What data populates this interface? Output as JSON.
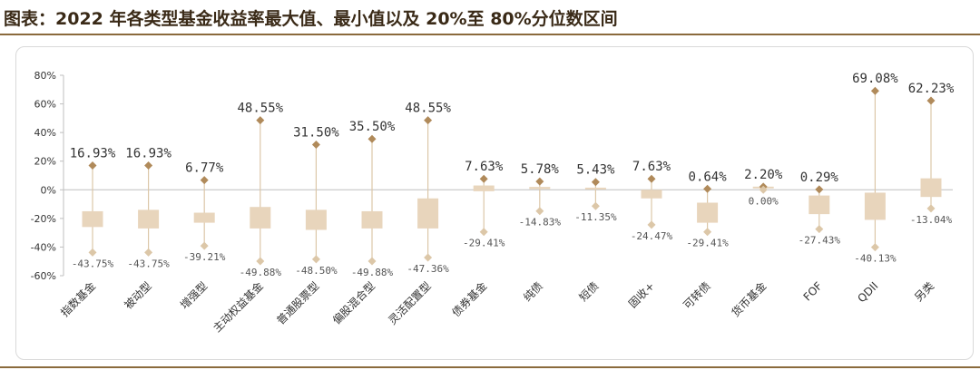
{
  "title": "图表：2022 年各类型基金收益率最大值、最小值以及 20%至 80%分位数区间",
  "chart_data": {
    "type": "box",
    "title": "图表：2022 年各类型基金收益率最大值、最小值以及 20%至 80%分位数区间",
    "ylim": [
      -60,
      80
    ],
    "y_ticks": [
      "80%",
      "60%",
      "40%",
      "20%",
      "0%",
      "-20%",
      "-40%",
      "-60%"
    ],
    "y_tick_values": [
      80,
      60,
      40,
      20,
      0,
      -20,
      -40,
      -60
    ],
    "grid": false,
    "colors": {
      "box": "#e8d5bc",
      "marker": "#b08a5a",
      "whisker": "#dcc7a8",
      "axis": "#bfbfbf"
    },
    "categories": [
      "指数基金",
      "被动型",
      "增强型",
      "主动权益基金",
      "普通股票型",
      "偏股混合型",
      "灵活配置型",
      "债券基金",
      "纯债",
      "短债",
      "固收+",
      "可转债",
      "货币基金",
      "FOF",
      "QDII",
      "另类"
    ],
    "max": [
      16.93,
      16.93,
      6.77,
      48.55,
      31.5,
      35.5,
      48.55,
      7.63,
      5.78,
      5.43,
      7.63,
      0.64,
      2.2,
      0.29,
      69.08,
      62.23
    ],
    "min": [
      -43.75,
      -43.75,
      -39.21,
      -49.88,
      -48.5,
      -49.88,
      -47.36,
      -29.41,
      -14.83,
      -11.35,
      -24.47,
      -29.41,
      0.0,
      -27.43,
      -40.13,
      -13.04
    ],
    "q20": [
      -26,
      -27,
      -23,
      -27,
      -28,
      -27,
      -27,
      -1,
      0.5,
      0.5,
      -6,
      -23,
      1.5,
      -17,
      -21,
      -5
    ],
    "q80": [
      -15,
      -14,
      -16,
      -12,
      -14,
      -15,
      -6,
      3,
      2,
      1.5,
      0,
      -9,
      2.2,
      -4,
      -2,
      8
    ],
    "max_labels": [
      "16.93%",
      "16.93%",
      "6.77%",
      "48.55%",
      "31.50%",
      "35.50%",
      "48.55%",
      "7.63%",
      "5.78%",
      "5.43%",
      "7.63%",
      "0.64%",
      "2.20%",
      "0.29%",
      "69.08%",
      "62.23%"
    ],
    "min_labels": [
      "-43.75%",
      "-43.75%",
      "-39.21%",
      "-49.88%",
      "-48.50%",
      "-49.88%",
      "-47.36%",
      "-29.41%",
      "-14.83%",
      "-11.35%",
      "-24.47%",
      "-29.41%",
      "0.00%",
      "-27.43%",
      "-40.13%",
      "-13.04%"
    ]
  }
}
